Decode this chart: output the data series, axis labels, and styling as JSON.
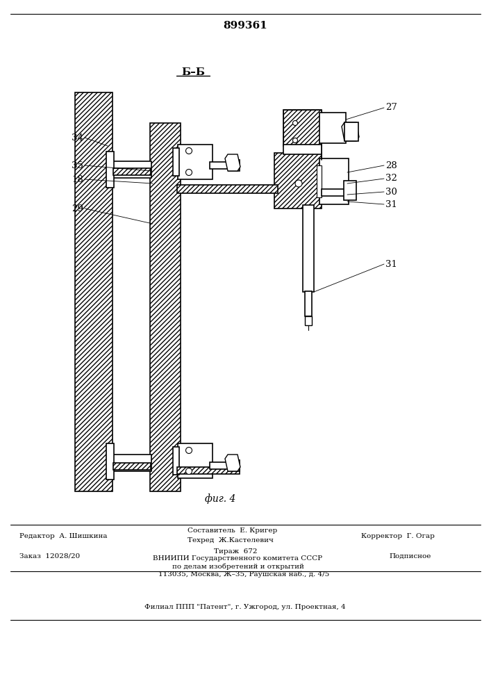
{
  "patent_number": "899361",
  "section_label": "Б–Б",
  "fig_label": "фиг. 4",
  "bg_color": "#ffffff",
  "line_color": "#000000",
  "footer": {
    "line1_left": "Редактор  А. Шишкина",
    "line1_center_top": "Составитель  Е. Кригер",
    "line1_center_bot": "Техред  Ж.Кастелевич",
    "line1_right": "Корректор  Г. Огар",
    "line2_left": "Заказ  12028/20",
    "line2_center1": "Тираж  672",
    "line2_center2": "ВНИИПИ Государственного комитета СССР",
    "line2_center3": "по делам изобретений и открытий",
    "line2_center4": "113035, Москва, Ж–35, Раушская наб., д. 4/5",
    "line2_right": "Подписное",
    "line3_center": "Филиал ППП \"Патент\", г. Ужгород, ул. Проектная, 4"
  }
}
